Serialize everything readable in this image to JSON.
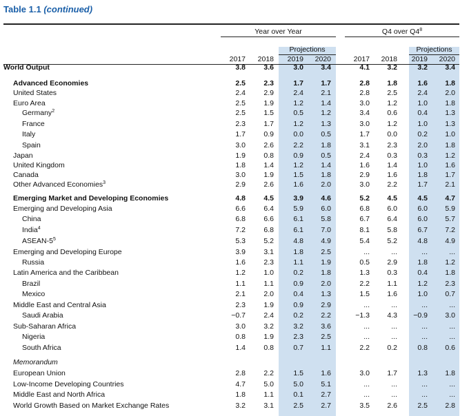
{
  "table_title": "Table 1.1",
  "table_title_suffix": "(continued)",
  "group_headers": {
    "yoy": "Year over Year",
    "q4_main": "Q4 over Q4",
    "q4_sup": "8",
    "projections": "Projections"
  },
  "year_headers": [
    "2017",
    "2018",
    "2019",
    "2020",
    "2017",
    "2018",
    "2019",
    "2020"
  ],
  "rows": [
    {
      "label": "World Output",
      "indent": 0,
      "bold": true,
      "values": [
        "3.8",
        "3.6",
        "3.0",
        "3.4",
        "4.1",
        "3.2",
        "3.2",
        "3.4"
      ]
    },
    {
      "label": "Advanced Economies",
      "indent": 1,
      "bold": true,
      "values": [
        "2.5",
        "2.3",
        "1.7",
        "1.7",
        "2.8",
        "1.8",
        "1.6",
        "1.8"
      ]
    },
    {
      "label": "United States",
      "indent": 1,
      "values": [
        "2.4",
        "2.9",
        "2.4",
        "2.1",
        "2.8",
        "2.5",
        "2.4",
        "2.0"
      ]
    },
    {
      "label": "Euro Area",
      "indent": 1,
      "values": [
        "2.5",
        "1.9",
        "1.2",
        "1.4",
        "3.0",
        "1.2",
        "1.0",
        "1.8"
      ]
    },
    {
      "label": "Germany",
      "sup": "2",
      "indent": 2,
      "values": [
        "2.5",
        "1.5",
        "0.5",
        "1.2",
        "3.4",
        "0.6",
        "0.4",
        "1.3"
      ]
    },
    {
      "label": "France",
      "indent": 2,
      "values": [
        "2.3",
        "1.7",
        "1.2",
        "1.3",
        "3.0",
        "1.2",
        "1.0",
        "1.3"
      ]
    },
    {
      "label": "Italy",
      "indent": 2,
      "values": [
        "1.7",
        "0.9",
        "0.0",
        "0.5",
        "1.7",
        "0.0",
        "0.2",
        "1.0"
      ]
    },
    {
      "label": "Spain",
      "indent": 2,
      "values": [
        "3.0",
        "2.6",
        "2.2",
        "1.8",
        "3.1",
        "2.3",
        "2.0",
        "1.8"
      ]
    },
    {
      "label": "Japan",
      "indent": 1,
      "values": [
        "1.9",
        "0.8",
        "0.9",
        "0.5",
        "2.4",
        "0.3",
        "0.3",
        "1.2"
      ]
    },
    {
      "label": "United Kingdom",
      "indent": 1,
      "values": [
        "1.8",
        "1.4",
        "1.2",
        "1.4",
        "1.6",
        "1.4",
        "1.0",
        "1.6"
      ]
    },
    {
      "label": "Canada",
      "indent": 1,
      "values": [
        "3.0",
        "1.9",
        "1.5",
        "1.8",
        "2.9",
        "1.6",
        "1.8",
        "1.7"
      ]
    },
    {
      "label": "Other Advanced Economies",
      "sup": "3",
      "indent": 1,
      "values": [
        "2.9",
        "2.6",
        "1.6",
        "2.0",
        "3.0",
        "2.2",
        "1.7",
        "2.1"
      ]
    },
    {
      "label": "Emerging Market and Developing Economies",
      "indent": 1,
      "bold": true,
      "values": [
        "4.8",
        "4.5",
        "3.9",
        "4.6",
        "5.2",
        "4.5",
        "4.5",
        "4.7"
      ]
    },
    {
      "label": "Emerging and Developing Asia",
      "indent": 1,
      "values": [
        "6.6",
        "6.4",
        "5.9",
        "6.0",
        "6.8",
        "6.0",
        "6.0",
        "5.9"
      ]
    },
    {
      "label": "China",
      "indent": 2,
      "values": [
        "6.8",
        "6.6",
        "6.1",
        "5.8",
        "6.7",
        "6.4",
        "6.0",
        "5.7"
      ]
    },
    {
      "label": "India",
      "sup": "4",
      "indent": 2,
      "values": [
        "7.2",
        "6.8",
        "6.1",
        "7.0",
        "8.1",
        "5.8",
        "6.7",
        "7.2"
      ]
    },
    {
      "label": "ASEAN-5",
      "sup": "5",
      "indent": 2,
      "values": [
        "5.3",
        "5.2",
        "4.8",
        "4.9",
        "5.4",
        "5.2",
        "4.8",
        "4.9"
      ]
    },
    {
      "label": "Emerging and Developing Europe",
      "indent": 1,
      "values": [
        "3.9",
        "3.1",
        "1.8",
        "2.5",
        "...",
        "...",
        "...",
        "..."
      ]
    },
    {
      "label": "Russia",
      "indent": 2,
      "values": [
        "1.6",
        "2.3",
        "1.1",
        "1.9",
        "0.5",
        "2.9",
        "1.8",
        "1.2"
      ]
    },
    {
      "label": "Latin America and the Caribbean",
      "indent": 1,
      "values": [
        "1.2",
        "1.0",
        "0.2",
        "1.8",
        "1.3",
        "0.3",
        "0.4",
        "1.8"
      ]
    },
    {
      "label": "Brazil",
      "indent": 2,
      "values": [
        "1.1",
        "1.1",
        "0.9",
        "2.0",
        "2.2",
        "1.1",
        "1.2",
        "2.3"
      ]
    },
    {
      "label": "Mexico",
      "indent": 2,
      "values": [
        "2.1",
        "2.0",
        "0.4",
        "1.3",
        "1.5",
        "1.6",
        "1.0",
        "0.7"
      ]
    },
    {
      "label": "Middle East and Central Asia",
      "indent": 1,
      "values": [
        "2.3",
        "1.9",
        "0.9",
        "2.9",
        "...",
        "...",
        "...",
        "..."
      ]
    },
    {
      "label": "Saudi Arabia",
      "indent": 2,
      "values": [
        "−0.7",
        "2.4",
        "0.2",
        "2.2",
        "−1.3",
        "4.3",
        "−0.9",
        "3.0"
      ]
    },
    {
      "label": "Sub-Saharan Africa",
      "indent": 1,
      "values": [
        "3.0",
        "3.2",
        "3.2",
        "3.6",
        "...",
        "...",
        "...",
        "..."
      ]
    },
    {
      "label": "Nigeria",
      "indent": 2,
      "values": [
        "0.8",
        "1.9",
        "2.3",
        "2.5",
        "...",
        "...",
        "...",
        "..."
      ]
    },
    {
      "label": "South Africa",
      "indent": 2,
      "values": [
        "1.4",
        "0.8",
        "0.7",
        "1.1",
        "2.2",
        "0.2",
        "0.8",
        "0.6"
      ]
    },
    {
      "label": "Memorandum",
      "indent": 1,
      "italic": true,
      "values": []
    },
    {
      "label": "European Union",
      "indent": 1,
      "values": [
        "2.8",
        "2.2",
        "1.5",
        "1.6",
        "3.0",
        "1.7",
        "1.3",
        "1.8"
      ]
    },
    {
      "label": "Low-Income Developing Countries",
      "indent": 1,
      "values": [
        "4.7",
        "5.0",
        "5.0",
        "5.1",
        "...",
        "...",
        "...",
        "..."
      ]
    },
    {
      "label": "Middle East and North Africa",
      "indent": 1,
      "values": [
        "1.8",
        "1.1",
        "0.1",
        "2.7",
        "...",
        "...",
        "...",
        "..."
      ]
    },
    {
      "label": "World Growth Based on Market Exchange Rates",
      "indent": 1,
      "values": [
        "3.2",
        "3.1",
        "2.5",
        "2.7",
        "3.5",
        "2.6",
        "2.5",
        "2.8"
      ]
    }
  ],
  "colors": {
    "title": "#1a5fa8",
    "projection_band": "#cfe0f0"
  }
}
